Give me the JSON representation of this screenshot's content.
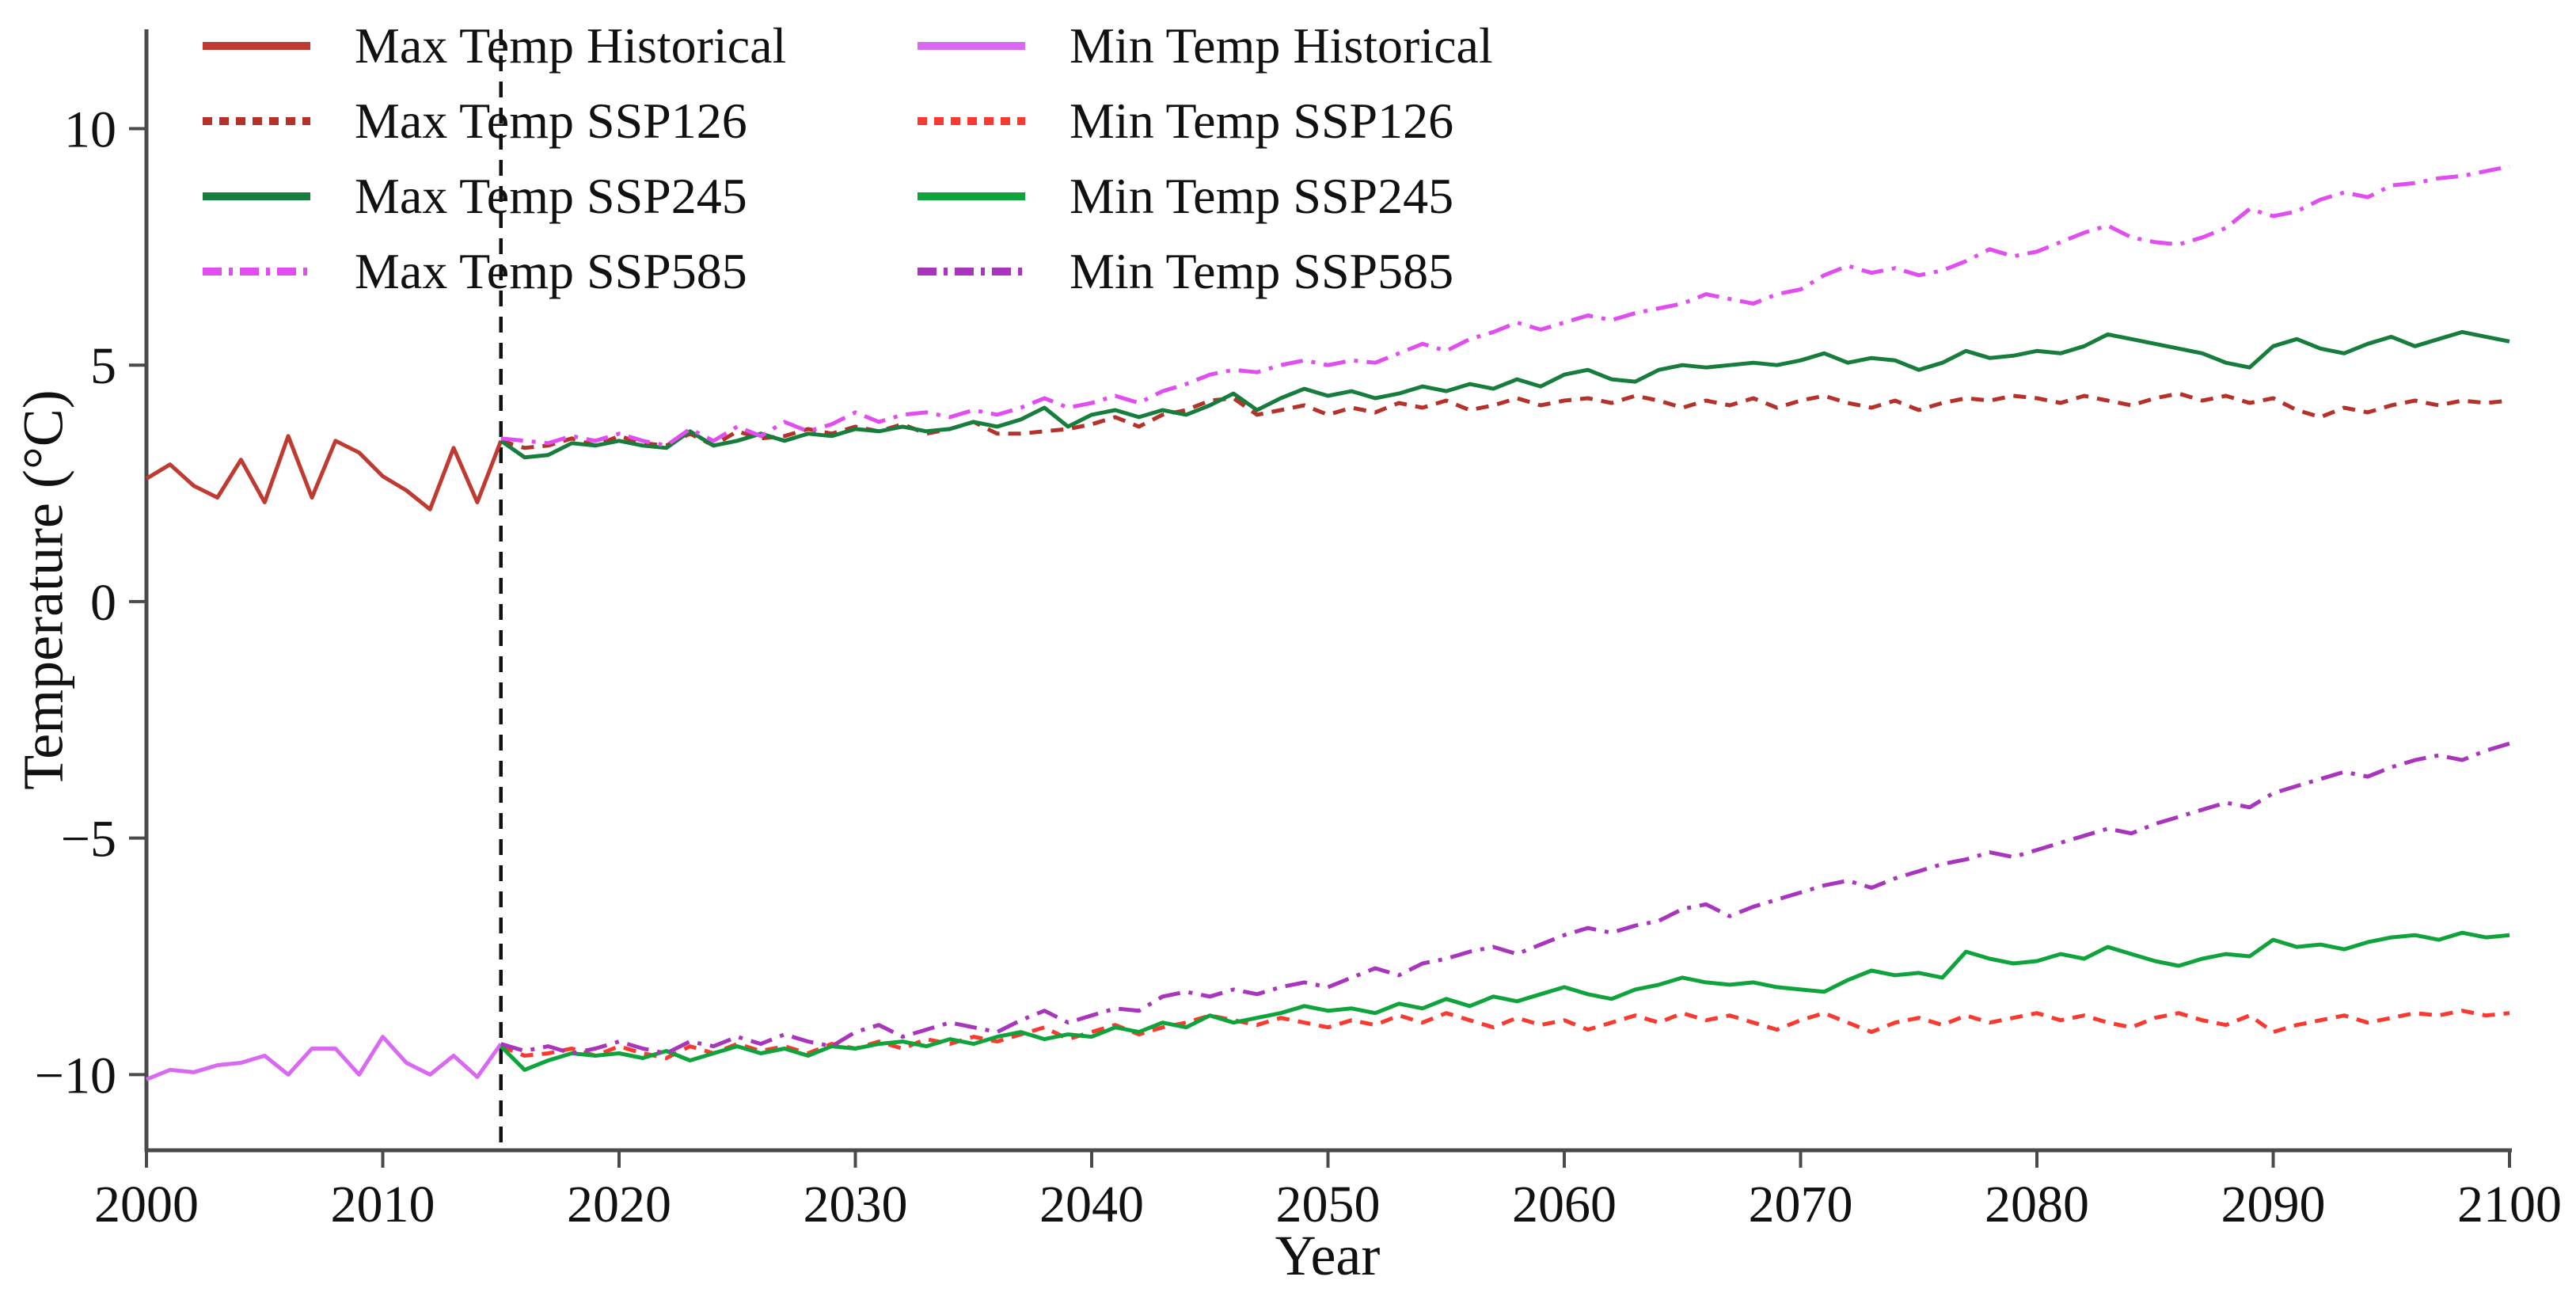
{
  "chart_data": {
    "type": "line",
    "title": "",
    "xlabel": "Year",
    "ylabel": "Temperature (°C)",
    "xlim": [
      2000,
      2100
    ],
    "ylim": [
      -11.6,
      12.1
    ],
    "x_ticks": [
      2000,
      2010,
      2020,
      2030,
      2040,
      2050,
      2060,
      2070,
      2080,
      2090,
      2100
    ],
    "y_ticks": [
      10,
      5,
      0,
      -5,
      -10
    ],
    "y_tick_labels": [
      "10",
      "5",
      "0",
      "−5",
      "−10"
    ],
    "grid": false,
    "legend_position": "upper-left-two-columns-no-frame",
    "annotations": [
      {
        "type": "vline",
        "x": 2015,
        "line_style": "dashed",
        "color": "#111111"
      }
    ],
    "series": [
      {
        "name": "Max Temp Historical",
        "color": "#c13a31",
        "line_style": "solid",
        "x_start": 2000,
        "values": [
          2.6,
          2.9,
          2.45,
          2.2,
          3.0,
          2.1,
          3.5,
          2.2,
          3.4,
          3.15,
          2.65,
          2.35,
          1.95,
          3.25,
          2.1,
          3.4
        ]
      },
      {
        "name": "Min Temp Historical",
        "color": "#d968f2",
        "line_style": "solid",
        "x_start": 2000,
        "values": [
          -10.1,
          -9.9,
          -9.95,
          -9.8,
          -9.75,
          -9.6,
          -10.0,
          -9.45,
          -9.45,
          -10.0,
          -9.2,
          -9.75,
          -10.0,
          -9.6,
          -10.05,
          -9.35
        ]
      },
      {
        "name": "Max Temp SSP126",
        "color": "#b5312a",
        "line_style": "dashed",
        "x_start": 2015,
        "values": [
          3.4,
          3.25,
          3.3,
          3.45,
          3.3,
          3.5,
          3.35,
          3.3,
          3.55,
          3.3,
          3.6,
          3.45,
          3.5,
          3.65,
          3.55,
          3.7,
          3.6,
          3.75,
          3.55,
          3.65,
          3.8,
          3.55,
          3.55,
          3.6,
          3.65,
          3.75,
          3.9,
          3.7,
          3.95,
          4.05,
          4.25,
          4.3,
          3.95,
          4.05,
          4.15,
          3.95,
          4.1,
          4.0,
          4.2,
          4.1,
          4.25,
          4.05,
          4.15,
          4.3,
          4.15,
          4.25,
          4.3,
          4.2,
          4.35,
          4.25,
          4.1,
          4.25,
          4.15,
          4.3,
          4.1,
          4.25,
          4.35,
          4.2,
          4.1,
          4.25,
          4.05,
          4.2,
          4.3,
          4.25,
          4.35,
          4.3,
          4.2,
          4.35,
          4.25,
          4.15,
          4.3,
          4.4,
          4.25,
          4.35,
          4.2,
          4.3,
          4.05,
          3.9,
          4.1,
          4.0,
          4.15,
          4.25,
          4.15,
          4.25,
          4.2,
          4.25
        ]
      },
      {
        "name": "Min Temp SSP126",
        "color": "#fa3a30",
        "line_style": "dashed",
        "x_start": 2015,
        "values": [
          -9.4,
          -9.6,
          -9.55,
          -9.45,
          -9.6,
          -9.4,
          -9.55,
          -9.65,
          -9.4,
          -9.55,
          -9.35,
          -9.5,
          -9.4,
          -9.55,
          -9.35,
          -9.45,
          -9.3,
          -9.45,
          -9.25,
          -9.35,
          -9.2,
          -9.3,
          -9.15,
          -9.0,
          -9.25,
          -9.1,
          -8.95,
          -9.15,
          -9.0,
          -8.9,
          -8.75,
          -8.85,
          -8.95,
          -8.8,
          -8.9,
          -9.0,
          -8.85,
          -8.95,
          -8.75,
          -8.9,
          -8.7,
          -8.85,
          -9.0,
          -8.8,
          -8.95,
          -8.85,
          -9.05,
          -8.9,
          -8.75,
          -8.9,
          -8.7,
          -8.85,
          -8.75,
          -8.9,
          -9.05,
          -8.85,
          -8.7,
          -8.9,
          -9.1,
          -8.9,
          -8.8,
          -8.95,
          -8.75,
          -8.9,
          -8.8,
          -8.7,
          -8.85,
          -8.75,
          -8.9,
          -9.0,
          -8.8,
          -8.7,
          -8.85,
          -8.95,
          -8.75,
          -9.1,
          -8.95,
          -8.85,
          -8.75,
          -8.9,
          -8.8,
          -8.7,
          -8.75,
          -8.65,
          -8.75,
          -8.7
        ]
      },
      {
        "name": "Max Temp SSP245",
        "color": "#177d3d",
        "line_style": "solid",
        "x_start": 2015,
        "values": [
          3.4,
          3.05,
          3.1,
          3.35,
          3.3,
          3.4,
          3.3,
          3.25,
          3.6,
          3.3,
          3.4,
          3.55,
          3.4,
          3.55,
          3.5,
          3.65,
          3.6,
          3.7,
          3.6,
          3.65,
          3.8,
          3.7,
          3.85,
          4.1,
          3.7,
          3.95,
          4.05,
          3.9,
          4.05,
          3.95,
          4.15,
          4.4,
          4.05,
          4.3,
          4.5,
          4.35,
          4.45,
          4.3,
          4.4,
          4.55,
          4.45,
          4.6,
          4.5,
          4.7,
          4.55,
          4.8,
          4.9,
          4.7,
          4.65,
          4.9,
          5.0,
          4.95,
          5.0,
          5.05,
          5.0,
          5.1,
          5.25,
          5.05,
          5.15,
          5.1,
          4.9,
          5.05,
          5.3,
          5.15,
          5.2,
          5.3,
          5.25,
          5.4,
          5.65,
          5.55,
          5.45,
          5.35,
          5.25,
          5.05,
          4.95,
          5.4,
          5.55,
          5.35,
          5.25,
          5.45,
          5.6,
          5.4,
          5.55,
          5.7,
          5.6,
          5.5
        ]
      },
      {
        "name": "Min Temp SSP245",
        "color": "#0fa33c",
        "line_style": "solid",
        "x_start": 2015,
        "values": [
          -9.4,
          -9.9,
          -9.7,
          -9.55,
          -9.6,
          -9.55,
          -9.65,
          -9.5,
          -9.7,
          -9.55,
          -9.4,
          -9.55,
          -9.45,
          -9.6,
          -9.4,
          -9.45,
          -9.35,
          -9.3,
          -9.4,
          -9.25,
          -9.35,
          -9.2,
          -9.1,
          -9.25,
          -9.15,
          -9.2,
          -9.0,
          -9.1,
          -8.9,
          -9.0,
          -8.75,
          -8.9,
          -8.8,
          -8.7,
          -8.55,
          -8.65,
          -8.6,
          -8.7,
          -8.5,
          -8.6,
          -8.4,
          -8.55,
          -8.35,
          -8.45,
          -8.3,
          -8.15,
          -8.3,
          -8.4,
          -8.2,
          -8.1,
          -7.95,
          -8.05,
          -8.1,
          -8.05,
          -8.15,
          -8.2,
          -8.25,
          -8.0,
          -7.8,
          -7.9,
          -7.85,
          -7.95,
          -7.4,
          -7.55,
          -7.65,
          -7.6,
          -7.45,
          -7.55,
          -7.3,
          -7.45,
          -7.6,
          -7.7,
          -7.55,
          -7.45,
          -7.5,
          -7.15,
          -7.3,
          -7.25,
          -7.35,
          -7.2,
          -7.1,
          -7.05,
          -7.15,
          -7.0,
          -7.1,
          -7.05
        ]
      },
      {
        "name": "Max Temp SSP585",
        "color": "#e14df0",
        "line_style": "dashdot",
        "x_start": 2015,
        "values": [
          3.45,
          3.4,
          3.35,
          3.5,
          3.4,
          3.55,
          3.4,
          3.3,
          3.65,
          3.4,
          3.7,
          3.5,
          3.8,
          3.6,
          3.75,
          4.0,
          3.8,
          3.95,
          4.0,
          3.9,
          4.05,
          3.95,
          4.1,
          4.3,
          4.1,
          4.2,
          4.35,
          4.2,
          4.45,
          4.6,
          4.8,
          4.9,
          4.85,
          5.0,
          5.1,
          5.0,
          5.1,
          5.05,
          5.25,
          5.45,
          5.3,
          5.55,
          5.7,
          5.9,
          5.75,
          5.9,
          6.05,
          5.95,
          6.1,
          6.2,
          6.3,
          6.5,
          6.4,
          6.3,
          6.5,
          6.6,
          6.9,
          7.1,
          6.95,
          7.05,
          6.9,
          7.0,
          7.2,
          7.45,
          7.3,
          7.4,
          7.6,
          7.8,
          7.95,
          7.7,
          7.6,
          7.55,
          7.7,
          7.9,
          8.3,
          8.15,
          8.25,
          8.5,
          8.65,
          8.55,
          8.8,
          8.85,
          8.95,
          9.0,
          9.1,
          9.2
        ]
      },
      {
        "name": "Min Temp SSP585",
        "color": "#a934be",
        "line_style": "dashdot",
        "x_start": 2015,
        "values": [
          -9.35,
          -9.5,
          -9.4,
          -9.55,
          -9.45,
          -9.3,
          -9.45,
          -9.55,
          -9.3,
          -9.4,
          -9.2,
          -9.35,
          -9.15,
          -9.3,
          -9.4,
          -9.1,
          -8.95,
          -9.2,
          -9.05,
          -8.9,
          -9.0,
          -9.1,
          -8.85,
          -8.65,
          -8.9,
          -8.75,
          -8.6,
          -8.65,
          -8.35,
          -8.25,
          -8.35,
          -8.2,
          -8.3,
          -8.15,
          -8.05,
          -8.15,
          -7.95,
          -7.75,
          -7.9,
          -7.65,
          -7.55,
          -7.4,
          -7.3,
          -7.45,
          -7.25,
          -7.05,
          -6.9,
          -7.0,
          -6.85,
          -6.75,
          -6.5,
          -6.4,
          -6.65,
          -6.45,
          -6.3,
          -6.15,
          -6.0,
          -5.9,
          -6.05,
          -5.85,
          -5.7,
          -5.55,
          -5.45,
          -5.3,
          -5.4,
          -5.25,
          -5.1,
          -4.95,
          -4.8,
          -4.9,
          -4.7,
          -4.55,
          -4.4,
          -4.25,
          -4.35,
          -4.05,
          -3.9,
          -3.75,
          -3.6,
          -3.7,
          -3.5,
          -3.35,
          -3.25,
          -3.35,
          -3.15,
          -3.0
        ]
      }
    ]
  },
  "axes": {
    "x_label": "Year",
    "y_label": "Temperature (°C)"
  },
  "legend": {
    "columns": [
      [
        {
          "label": "Max Temp Historical",
          "color": "#c13a31",
          "line_style": "solid"
        },
        {
          "label": "Max Temp SSP126",
          "color": "#b5312a",
          "line_style": "dashed"
        },
        {
          "label": "Max Temp SSP245",
          "color": "#177d3d",
          "line_style": "solid"
        },
        {
          "label": "Max Temp SSP585",
          "color": "#e14df0",
          "line_style": "dashdot"
        }
      ],
      [
        {
          "label": "Min Temp Historical",
          "color": "#d968f2",
          "line_style": "solid"
        },
        {
          "label": "Min Temp SSP126",
          "color": "#fa3a30",
          "line_style": "dashed"
        },
        {
          "label": "Min Temp SSP245",
          "color": "#0fa33c",
          "line_style": "solid"
        },
        {
          "label": "Min Temp SSP585",
          "color": "#a934be",
          "line_style": "dashdot"
        }
      ]
    ]
  }
}
